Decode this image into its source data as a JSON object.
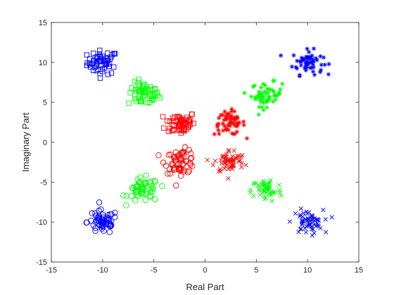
{
  "chart_data": {
    "type": "scatter",
    "title": "",
    "xlabel": "Real Part",
    "ylabel": "Imaginary Part",
    "xlim": [
      -15,
      15
    ],
    "ylim": [
      -15,
      15
    ],
    "xticks": [
      -15,
      -10,
      -5,
      0,
      5,
      10,
      15
    ],
    "yticks": [
      -15,
      -10,
      -5,
      0,
      5,
      10,
      15
    ],
    "xtick_labels": [
      "-15",
      "-10",
      "-5",
      "0",
      "5",
      "10",
      "15"
    ],
    "ytick_labels": [
      "-15",
      "-10",
      "-5",
      "0",
      "5",
      "10",
      "15"
    ],
    "grid": false,
    "box": true,
    "clusters": [
      {
        "marker": "square",
        "color": "#0000ff",
        "center": [
          -10,
          10
        ],
        "spread": 0.75,
        "count": 60
      },
      {
        "marker": "square",
        "color": "#00ff00",
        "center": [
          -6,
          6
        ],
        "spread": 0.75,
        "count": 55
      },
      {
        "marker": "square",
        "color": "#ff0000",
        "center": [
          -2.4,
          2.4
        ],
        "spread": 0.75,
        "count": 60
      },
      {
        "marker": "asterisk",
        "color": "#0000ff",
        "center": [
          10,
          10
        ],
        "spread": 0.75,
        "count": 60
      },
      {
        "marker": "asterisk",
        "color": "#00ff00",
        "center": [
          6,
          6
        ],
        "spread": 0.75,
        "count": 55
      },
      {
        "marker": "asterisk",
        "color": "#ff0000",
        "center": [
          2.4,
          2.4
        ],
        "spread": 0.75,
        "count": 60
      },
      {
        "marker": "circle",
        "color": "#0000ff",
        "center": [
          -10,
          -10
        ],
        "spread": 0.75,
        "count": 60
      },
      {
        "marker": "circle",
        "color": "#00ff00",
        "center": [
          -6,
          -6
        ],
        "spread": 0.75,
        "count": 55
      },
      {
        "marker": "circle",
        "color": "#ff0000",
        "center": [
          -2.4,
          -2.4
        ],
        "spread": 0.75,
        "count": 60
      },
      {
        "marker": "x",
        "color": "#0000ff",
        "center": [
          10,
          -10
        ],
        "spread": 0.75,
        "count": 60
      },
      {
        "marker": "x",
        "color": "#00ff00",
        "center": [
          6,
          -6
        ],
        "spread": 0.75,
        "count": 55
      },
      {
        "marker": "x",
        "color": "#ff0000",
        "center": [
          2.4,
          -2.4
        ],
        "spread": 0.75,
        "count": 60
      }
    ]
  }
}
